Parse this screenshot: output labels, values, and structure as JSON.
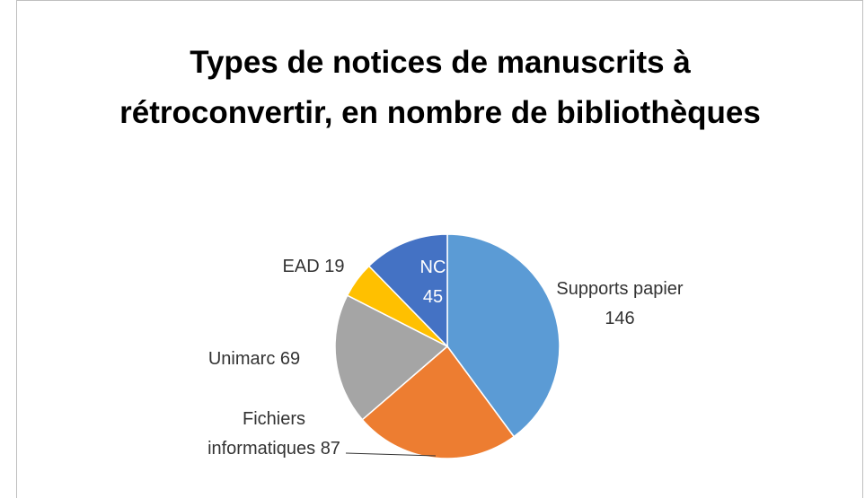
{
  "chart_data": {
    "type": "pie",
    "title": "Types de notices de manuscrits à rétroconvertir, en nombre de bibliothèques",
    "categories": [
      "Supports papier",
      "Fichiers informatiques",
      "Unimarc",
      "EAD",
      "NC"
    ],
    "values": [
      146,
      87,
      69,
      19,
      45
    ],
    "colors": [
      "#5b9bd5",
      "#ed7d31",
      "#a5a5a5",
      "#ffc000",
      "#4472c4"
    ]
  }
}
